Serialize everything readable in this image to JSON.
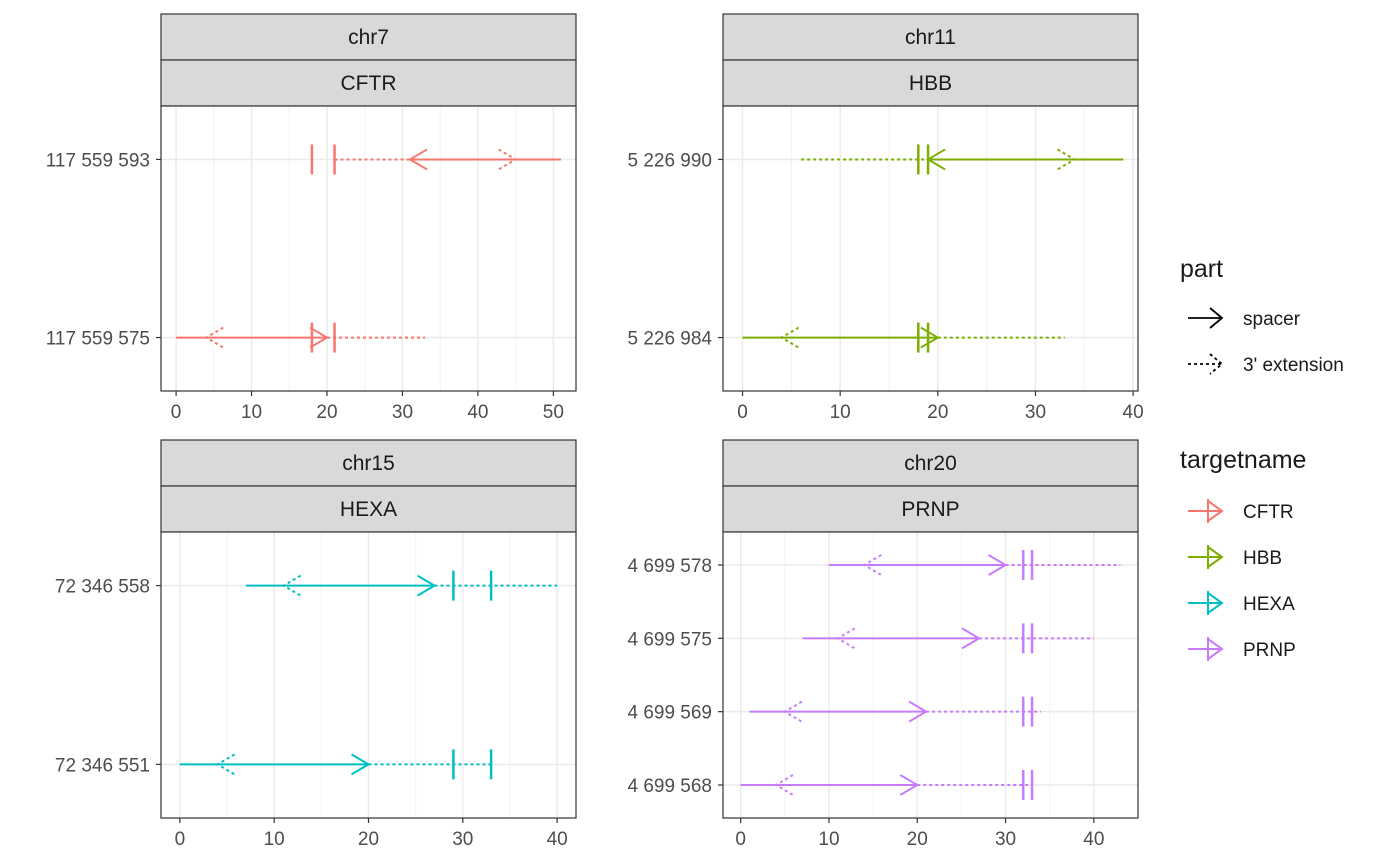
{
  "chart_data": {
    "type": "line",
    "description_free": true,
    "grid": true,
    "facet_layout": "2x2",
    "colors": {
      "CFTR": "#F8766D",
      "HBB": "#7CAE00",
      "HEXA": "#00BFC4",
      "PRNP": "#C77CFF"
    },
    "panels": [
      {
        "chrom": "chr7",
        "target": "CFTR",
        "xlim": [
          -2,
          53
        ],
        "xticks": [
          0,
          10,
          20,
          30,
          40,
          50
        ],
        "rows": [
          {
            "label": "117 559 593",
            "dir": -1,
            "spacer": [
              31,
              51
            ],
            "spacer_tip": 31,
            "ext": [
              21,
              31
            ],
            "ext_tip": 45,
            "ticks": [
              18,
              21
            ]
          },
          {
            "label": "117 559 575",
            "dir": 1,
            "spacer": [
              0,
              20
            ],
            "spacer_tip": 20,
            "ext": [
              20,
              33
            ],
            "ext_tip": 4,
            "ticks": [
              18,
              21
            ]
          }
        ]
      },
      {
        "chrom": "chr11",
        "target": "HBB",
        "xlim": [
          -2,
          40.5
        ],
        "xticks": [
          0,
          10,
          20,
          30,
          40
        ],
        "rows": [
          {
            "label": "5 226 990",
            "dir": -1,
            "spacer": [
              19,
              39
            ],
            "spacer_tip": 19,
            "ext": [
              6,
              19
            ],
            "ext_tip": 34,
            "ticks": [
              18,
              19
            ]
          },
          {
            "label": "5 226 984",
            "dir": 1,
            "spacer": [
              0,
              20
            ],
            "spacer_tip": 20,
            "ext": [
              20,
              33
            ],
            "ext_tip": 4,
            "ticks": [
              18,
              19
            ]
          }
        ]
      },
      {
        "chrom": "chr15",
        "target": "HEXA",
        "xlim": [
          -2,
          42
        ],
        "xticks": [
          0,
          10,
          20,
          30,
          40
        ],
        "rows": [
          {
            "label": "72 346 558",
            "dir": 1,
            "spacer": [
              7,
              27
            ],
            "spacer_tip": 27,
            "ext": [
              27,
              40
            ],
            "ext_tip": 11,
            "ticks": [
              29,
              33
            ]
          },
          {
            "label": "72 346 551",
            "dir": 1,
            "spacer": [
              0,
              20
            ],
            "spacer_tip": 20,
            "ext": [
              20,
              33
            ],
            "ext_tip": 4,
            "ticks": [
              29,
              33
            ]
          }
        ]
      },
      {
        "chrom": "chr20",
        "target": "PRNP",
        "xlim": [
          -2,
          45
        ],
        "xticks": [
          0,
          10,
          20,
          30,
          40
        ],
        "rows": [
          {
            "label": "4 699 578",
            "dir": 1,
            "spacer": [
              10,
              30
            ],
            "spacer_tip": 30,
            "ext": [
              30,
              43
            ],
            "ext_tip": 14,
            "ticks": [
              32,
              33
            ]
          },
          {
            "label": "4 699 575",
            "dir": 1,
            "spacer": [
              7,
              27
            ],
            "spacer_tip": 27,
            "ext": [
              27,
              40
            ],
            "ext_tip": 11,
            "ticks": [
              32,
              33
            ]
          },
          {
            "label": "4 699 569",
            "dir": 1,
            "spacer": [
              1,
              21
            ],
            "spacer_tip": 21,
            "ext": [
              21,
              34
            ],
            "ext_tip": 5,
            "ticks": [
              32,
              33
            ]
          },
          {
            "label": "4 699 568",
            "dir": 1,
            "spacer": [
              0,
              20
            ],
            "spacer_tip": 20,
            "ext": [
              20,
              33
            ],
            "ext_tip": 4,
            "ticks": [
              32,
              33
            ]
          }
        ]
      }
    ],
    "legend": {
      "placement": "right",
      "part": {
        "title": "part",
        "items": [
          "spacer",
          "3' extension"
        ]
      },
      "targetname": {
        "title": "targetname",
        "items": [
          "CFTR",
          "HBB",
          "HEXA",
          "PRNP"
        ]
      }
    }
  }
}
